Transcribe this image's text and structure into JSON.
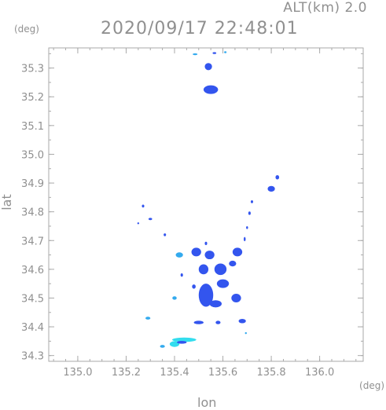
{
  "header": {
    "alt_label": "ALT(km) 2.0",
    "timestamp": "2020/09/17 22:48:01",
    "unit_left": "(deg)",
    "unit_right": "(deg)"
  },
  "chart_data": {
    "type": "heatmap",
    "title": "2020/09/17 22:48:01",
    "xlabel": "lon",
    "ylabel": "lat",
    "xlim": [
      134.88,
      136.18
    ],
    "ylim": [
      34.28,
      35.37
    ],
    "xticks": [
      "135.0",
      "135.2",
      "135.4",
      "135.6",
      "135.8",
      "136.0"
    ],
    "yticks": [
      "34.3",
      "34.4",
      "34.5",
      "34.6",
      "34.7",
      "34.8",
      "34.9",
      "35.0",
      "35.1",
      "35.2",
      "35.3"
    ],
    "grid": false,
    "colors": {
      "low": "#33ddee",
      "mid": "#33aaee",
      "high": "#3355ee",
      "frame": "#aaaaaa"
    },
    "echo_cells": [
      {
        "lon": 135.54,
        "lat": 35.305,
        "w": 0.03,
        "h": 0.025,
        "level": "high"
      },
      {
        "lon": 135.55,
        "lat": 35.225,
        "w": 0.06,
        "h": 0.03,
        "level": "high"
      },
      {
        "lon": 135.8,
        "lat": 34.88,
        "w": 0.03,
        "h": 0.02,
        "level": "high"
      },
      {
        "lon": 135.825,
        "lat": 34.92,
        "w": 0.015,
        "h": 0.015,
        "level": "high"
      },
      {
        "lon": 135.72,
        "lat": 34.835,
        "w": 0.01,
        "h": 0.01,
        "level": "high"
      },
      {
        "lon": 135.71,
        "lat": 34.795,
        "w": 0.01,
        "h": 0.012,
        "level": "high"
      },
      {
        "lon": 135.7,
        "lat": 34.745,
        "w": 0.008,
        "h": 0.01,
        "level": "high"
      },
      {
        "lon": 135.27,
        "lat": 34.82,
        "w": 0.01,
        "h": 0.01,
        "level": "high"
      },
      {
        "lon": 135.3,
        "lat": 34.775,
        "w": 0.015,
        "h": 0.008,
        "level": "high"
      },
      {
        "lon": 135.25,
        "lat": 34.76,
        "w": 0.008,
        "h": 0.006,
        "level": "high"
      },
      {
        "lon": 135.36,
        "lat": 34.72,
        "w": 0.01,
        "h": 0.01,
        "level": "high"
      },
      {
        "lon": 135.42,
        "lat": 34.65,
        "w": 0.03,
        "h": 0.018,
        "level": "mid"
      },
      {
        "lon": 135.49,
        "lat": 34.66,
        "w": 0.04,
        "h": 0.03,
        "level": "high"
      },
      {
        "lon": 135.545,
        "lat": 34.65,
        "w": 0.04,
        "h": 0.03,
        "level": "high"
      },
      {
        "lon": 135.53,
        "lat": 34.69,
        "w": 0.01,
        "h": 0.012,
        "level": "high"
      },
      {
        "lon": 135.66,
        "lat": 34.66,
        "w": 0.04,
        "h": 0.03,
        "level": "high"
      },
      {
        "lon": 135.69,
        "lat": 34.705,
        "w": 0.008,
        "h": 0.015,
        "level": "high"
      },
      {
        "lon": 135.52,
        "lat": 34.6,
        "w": 0.04,
        "h": 0.035,
        "level": "high"
      },
      {
        "lon": 135.59,
        "lat": 34.6,
        "w": 0.05,
        "h": 0.04,
        "level": "high"
      },
      {
        "lon": 135.64,
        "lat": 34.62,
        "w": 0.03,
        "h": 0.02,
        "level": "high"
      },
      {
        "lon": 135.53,
        "lat": 34.51,
        "w": 0.06,
        "h": 0.08,
        "level": "high"
      },
      {
        "lon": 135.6,
        "lat": 34.55,
        "w": 0.05,
        "h": 0.03,
        "level": "high"
      },
      {
        "lon": 135.655,
        "lat": 34.5,
        "w": 0.04,
        "h": 0.03,
        "level": "high"
      },
      {
        "lon": 135.57,
        "lat": 34.48,
        "w": 0.05,
        "h": 0.025,
        "level": "high"
      },
      {
        "lon": 135.43,
        "lat": 34.58,
        "w": 0.01,
        "h": 0.012,
        "level": "high"
      },
      {
        "lon": 135.4,
        "lat": 34.5,
        "w": 0.018,
        "h": 0.012,
        "level": "mid"
      },
      {
        "lon": 135.48,
        "lat": 34.54,
        "w": 0.015,
        "h": 0.015,
        "level": "high"
      },
      {
        "lon": 135.5,
        "lat": 34.415,
        "w": 0.04,
        "h": 0.012,
        "level": "high"
      },
      {
        "lon": 135.58,
        "lat": 34.415,
        "w": 0.02,
        "h": 0.012,
        "level": "high"
      },
      {
        "lon": 135.68,
        "lat": 34.42,
        "w": 0.03,
        "h": 0.015,
        "level": "high"
      },
      {
        "lon": 135.695,
        "lat": 34.378,
        "w": 0.006,
        "h": 0.006,
        "level": "mid"
      },
      {
        "lon": 135.29,
        "lat": 34.43,
        "w": 0.02,
        "h": 0.01,
        "level": "mid"
      },
      {
        "lon": 135.44,
        "lat": 34.355,
        "w": 0.1,
        "h": 0.015,
        "level": "low"
      },
      {
        "lon": 135.4,
        "lat": 34.34,
        "w": 0.04,
        "h": 0.02,
        "level": "low"
      },
      {
        "lon": 135.35,
        "lat": 34.332,
        "w": 0.02,
        "h": 0.01,
        "level": "mid"
      },
      {
        "lon": 135.43,
        "lat": 34.346,
        "w": 0.04,
        "h": 0.01,
        "level": "high"
      },
      {
        "lon": 135.565,
        "lat": 35.352,
        "w": 0.015,
        "h": 0.006,
        "level": "high"
      },
      {
        "lon": 135.485,
        "lat": 35.348,
        "w": 0.02,
        "h": 0.006,
        "level": "mid"
      },
      {
        "lon": 135.61,
        "lat": 35.355,
        "w": 0.01,
        "h": 0.006,
        "level": "mid"
      }
    ]
  }
}
